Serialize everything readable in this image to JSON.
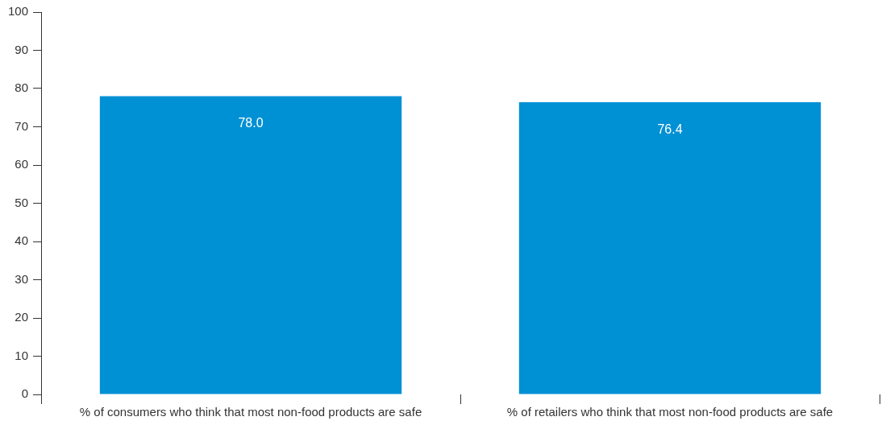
{
  "chart_data": {
    "type": "bar",
    "categories": [
      "% of consumers who think that most non-food products are safe",
      "% of retailers who think that most non-food products are safe"
    ],
    "values": [
      78.0,
      76.4
    ],
    "color": "#0090d4",
    "ylim": [
      0,
      100
    ],
    "yticks": [
      0,
      10,
      20,
      30,
      40,
      50,
      60,
      70,
      80,
      90,
      100
    ],
    "value_labels": [
      "78.0",
      "76.4"
    ],
    "grid": false,
    "legend": false
  }
}
